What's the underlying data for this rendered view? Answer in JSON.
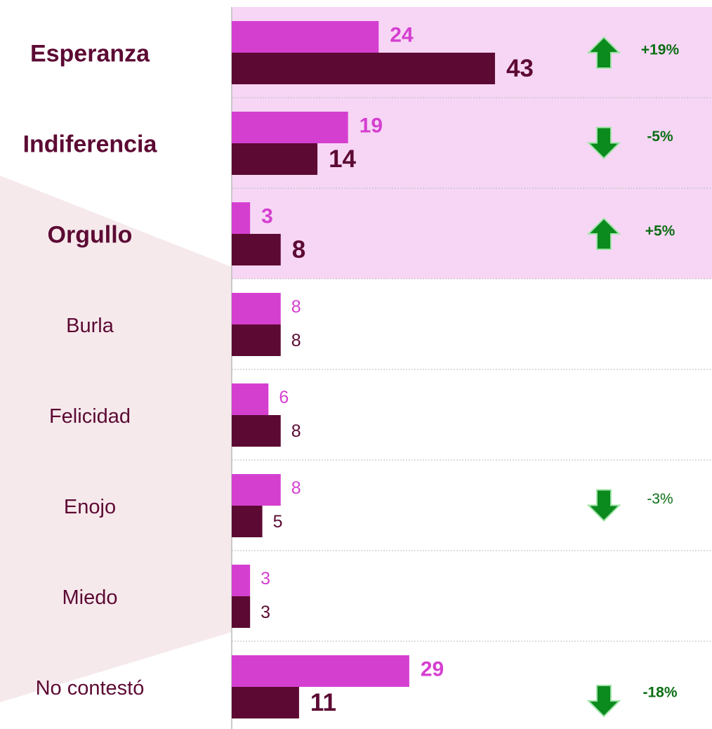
{
  "chart_data": {
    "type": "bar",
    "orientation": "horizontal",
    "categories": [
      "Esperanza",
      "Indiferencia",
      "Orgullo",
      "Burla",
      "Felicidad",
      "Enojo",
      "Miedo",
      "No contestó"
    ],
    "series": [
      {
        "color": "#d53fd0",
        "values": [
          24,
          19,
          3,
          8,
          6,
          8,
          3,
          29
        ]
      },
      {
        "color": "#5c0a33",
        "values": [
          43,
          14,
          8,
          8,
          8,
          5,
          3,
          11
        ]
      }
    ],
    "highlight": [
      true,
      true,
      true,
      false,
      false,
      false,
      false,
      false
    ],
    "bold_values": [
      true,
      true,
      true,
      false,
      false,
      false,
      false,
      true
    ],
    "changes": [
      19,
      -5,
      5,
      null,
      null,
      -3,
      null,
      -18
    ],
    "change_labels": [
      "+19%",
      "-5%",
      "+5%",
      null,
      null,
      "-3%",
      null,
      "-18%"
    ],
    "change_color": "#0b8a1e",
    "highlight_color": "#f7d6f5"
  }
}
